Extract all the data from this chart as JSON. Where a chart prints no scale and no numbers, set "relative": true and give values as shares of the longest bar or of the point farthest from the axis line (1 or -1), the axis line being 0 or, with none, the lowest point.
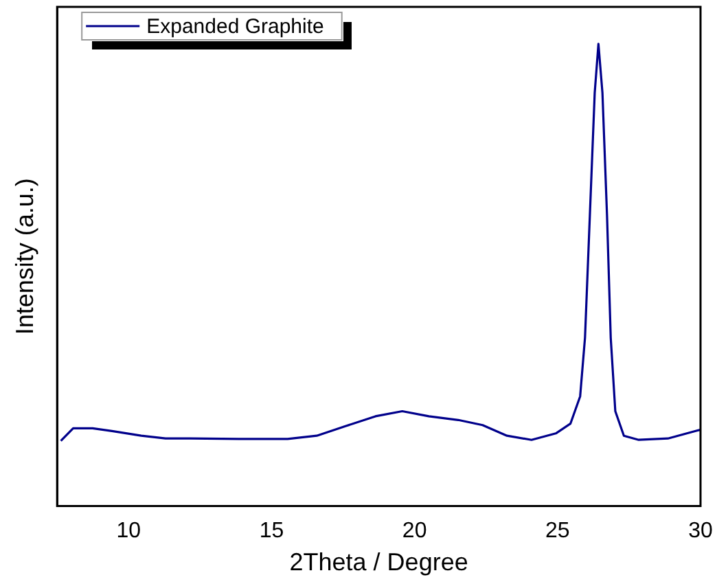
{
  "chart_data": {
    "type": "line",
    "xlabel": "2Theta / Degree",
    "ylabel": "Intensity (a.u.)",
    "relative": true,
    "legend": "top left",
    "marker": "none",
    "grid": false,
    "xlim": [
      7.5,
      30
    ],
    "xticks": [
      10,
      15,
      20,
      25,
      30
    ],
    "series": [
      {
        "name": "Expanded Graphite",
        "color": "#00008b",
        "x": [
          7.63,
          8.06,
          8.74,
          9.42,
          10.44,
          11.29,
          12.15,
          13.85,
          15.56,
          16.58,
          17.6,
          18.63,
          19.57,
          20.5,
          21.53,
          22.38,
          23.23,
          24.09,
          24.94,
          25.45,
          25.79,
          25.96,
          26.13,
          26.3,
          26.43,
          26.57,
          26.73,
          26.86,
          27.02,
          27.32,
          27.84,
          28.86,
          30.0
        ],
        "values": [
          0.141,
          0.168,
          0.168,
          0.162,
          0.152,
          0.146,
          0.146,
          0.145,
          0.145,
          0.152,
          0.173,
          0.194,
          0.205,
          0.194,
          0.186,
          0.175,
          0.152,
          0.143,
          0.157,
          0.178,
          0.237,
          0.364,
          0.629,
          0.894,
          1.0,
          0.894,
          0.629,
          0.364,
          0.205,
          0.152,
          0.143,
          0.146,
          0.165
        ]
      }
    ]
  }
}
